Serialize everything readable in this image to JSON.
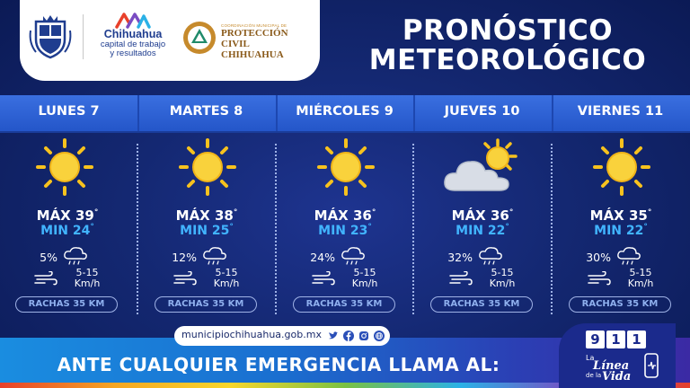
{
  "header": {
    "brand": {
      "line1": "Chihuahua",
      "line2": "capital de trabajo",
      "line3": "y resultados"
    },
    "proteccion_civil": {
      "small": "COORDINACIÓN MUNICIPAL DE",
      "line1": "PROTECCIÓN CIVIL",
      "line2": "CHIHUAHUA"
    },
    "title_line1": "PRONÓSTICO",
    "title_line2": "METEOROLÓGICO"
  },
  "days": [
    {
      "name": "LUNES 7",
      "icon": "sun-icon",
      "max": "MÁX 39",
      "min": "MIN 24",
      "rain": "5%",
      "wind": "5-15",
      "wind_unit": "Km/h",
      "gusts": "RACHAS 35 KM"
    },
    {
      "name": "MARTES 8",
      "icon": "sun-icon",
      "max": "MÁX 38",
      "min": "MIN 25",
      "rain": "12%",
      "wind": "5-15",
      "wind_unit": "Km/h",
      "gusts": "RACHAS 35 KM"
    },
    {
      "name": "MIÉRCOLES 9",
      "icon": "sun-icon",
      "max": "MÁX 36",
      "min": "MIN 23",
      "rain": "24%",
      "wind": "5-15",
      "wind_unit": "Km/h",
      "gusts": "RACHAS 35 KM"
    },
    {
      "name": "JUEVES 10",
      "icon": "cloud-sun-icon",
      "max": "MÁX 36",
      "min": "MIN 22",
      "rain": "32%",
      "wind": "5-15",
      "wind_unit": "Km/h",
      "gusts": "RACHAS 35 KM"
    },
    {
      "name": "VIERNES 11",
      "icon": "sun-icon",
      "max": "MÁX 35",
      "min": "MIN 22",
      "rain": "30%",
      "wind": "5-15",
      "wind_unit": "Km/h",
      "gusts": "RACHAS 35 KM"
    }
  ],
  "degree": "°",
  "footer": {
    "url": "municipiochihuahua.gob.mx",
    "emergency": "ANTE CUALQUIER EMERGENCIA LLAMA AL:",
    "badge": {
      "d1": "9",
      "d2": "1",
      "d3": "1",
      "l1": "La",
      "l2": "Línea",
      "l3": "de la",
      "l4": "Vida"
    }
  },
  "colors": {
    "background": "#142872",
    "day_bar": "#2f64d6",
    "min_temp": "#41b4ff",
    "sun": "#f7c21e"
  }
}
